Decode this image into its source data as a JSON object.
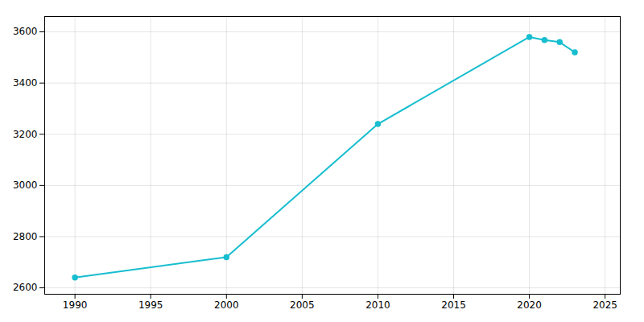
{
  "chart_data": {
    "type": "line",
    "x": [
      1990,
      2000,
      2010,
      2020,
      2021,
      2022,
      2023
    ],
    "values": [
      2640,
      2720,
      3240,
      3580,
      3568,
      3560,
      3520
    ],
    "color": "#17becf",
    "marker": "circle",
    "xlim": [
      1988,
      2026
    ],
    "ylim": [
      2575,
      3660
    ],
    "xticks": [
      1990,
      1995,
      2000,
      2005,
      2010,
      2015,
      2020,
      2025
    ],
    "yticks": [
      2600,
      2800,
      3000,
      3200,
      3400,
      3600
    ],
    "grid": true
  }
}
